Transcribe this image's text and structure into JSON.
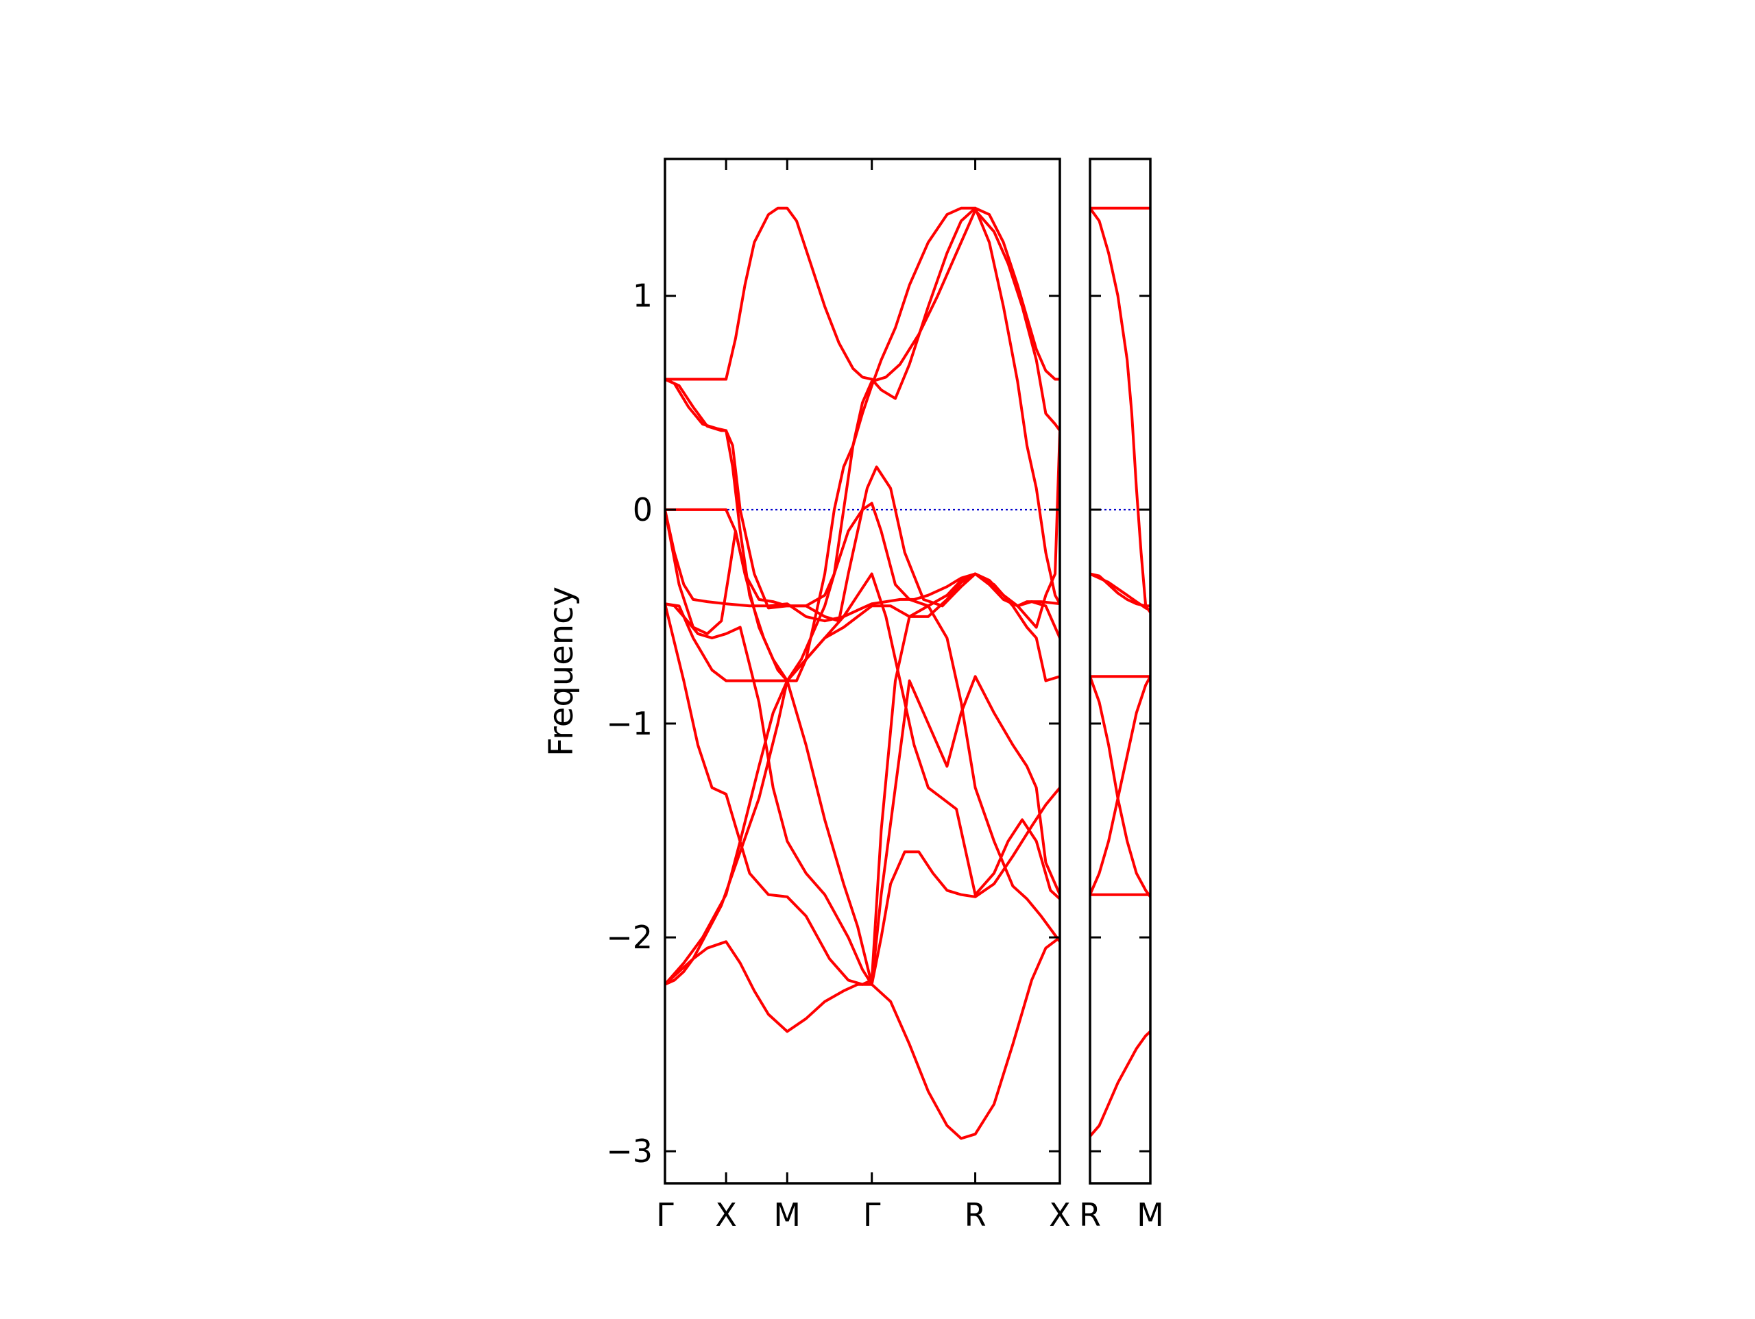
{
  "chart_data": {
    "type": "line",
    "title": "",
    "xlabel": "",
    "ylabel": "Frequency",
    "ylim": [
      -3.15,
      1.64
    ],
    "yticks": [
      1,
      0,
      -1,
      -2,
      -3
    ],
    "ytick_labels": [
      "1",
      "0",
      "−1",
      "−2",
      "−3"
    ],
    "grid": false,
    "legend": "none",
    "line_color": "#ff0000",
    "zero_line_color": "#0000cc",
    "panels": [
      {
        "name": "panel-main",
        "x_range": [
          0,
          4.2
        ],
        "xticks": [
          0,
          0.65,
          1.3,
          2.2,
          3.3,
          4.2
        ],
        "xtick_labels": [
          "Γ",
          "X",
          "M",
          "Γ",
          "R",
          "X"
        ],
        "series": [
          {
            "name": "",
            "x": [
              0,
              0.1,
              0.2,
              0.3,
              0.45,
              0.65,
              0.8,
              0.95,
              1.1,
              1.3,
              1.5,
              1.7,
              1.9,
              2.05,
              2.2,
              2.4,
              2.6,
              2.8,
              3.0,
              3.15,
              3.3,
              3.5,
              3.7,
              3.9,
              4.05,
              4.2
            ],
            "y": [
              -2.22,
              -2.2,
              -2.16,
              -2.1,
              -2.05,
              -2.02,
              -2.12,
              -2.25,
              -2.36,
              -2.44,
              -2.38,
              -2.3,
              -2.25,
              -2.22,
              -2.22,
              -2.3,
              -2.5,
              -2.72,
              -2.88,
              -2.94,
              -2.92,
              -2.78,
              -2.5,
              -2.2,
              -2.05,
              -2.0
            ]
          },
          {
            "name": "",
            "x": [
              0,
              0.2,
              0.4,
              0.55,
              0.65,
              0.8,
              1.0,
              1.15,
              1.3,
              1.5,
              1.7,
              1.9,
              2.05,
              2.2,
              2.35,
              2.5,
              2.65,
              2.8,
              2.95,
              3.1,
              3.3,
              3.5,
              3.65,
              3.8,
              3.95,
              4.1,
              4.2
            ],
            "y": [
              -2.22,
              -2.12,
              -2.0,
              -1.88,
              -1.8,
              -1.55,
              -1.2,
              -0.95,
              -0.8,
              -0.7,
              -0.6,
              -0.5,
              -0.4,
              -0.3,
              -0.5,
              -0.8,
              -1.1,
              -1.3,
              -1.35,
              -1.4,
              -1.8,
              -1.7,
              -1.55,
              -1.45,
              -1.55,
              -1.78,
              -1.82
            ]
          },
          {
            "name": "",
            "x": [
              0,
              0.3,
              0.6,
              0.8,
              1.0,
              1.2,
              1.3,
              1.5,
              1.7,
              1.9,
              2.05,
              2.2,
              2.3,
              2.4,
              2.55,
              2.7,
              2.85,
              3.0,
              3.15,
              3.3,
              3.5,
              3.7,
              3.9,
              4.05,
              4.2
            ],
            "y": [
              -2.22,
              -2.1,
              -1.85,
              -1.6,
              -1.35,
              -1.0,
              -0.8,
              -1.1,
              -1.45,
              -1.75,
              -1.95,
              -2.22,
              -2.0,
              -1.75,
              -1.6,
              -1.6,
              -1.7,
              -1.78,
              -1.8,
              -1.81,
              -1.75,
              -1.62,
              -1.48,
              -1.38,
              -1.3
            ]
          },
          {
            "name": "",
            "x": [
              0,
              0.2,
              0.35,
              0.5,
              0.65,
              0.75,
              0.9,
              1.1,
              1.3,
              1.5,
              1.75,
              1.95,
              2.1,
              2.2,
              2.3,
              2.45,
              2.6,
              2.8,
              3.0,
              3.15,
              3.3,
              3.5,
              3.7,
              3.85,
              4.0,
              4.2
            ],
            "y": [
              -0.44,
              -0.8,
              -1.1,
              -1.3,
              -1.33,
              -1.48,
              -1.7,
              -1.8,
              -1.81,
              -1.9,
              -2.1,
              -2.2,
              -2.22,
              -2.2,
              -1.5,
              -0.8,
              -0.5,
              -0.45,
              -0.6,
              -0.9,
              -1.3,
              -1.55,
              -1.76,
              -1.82,
              -1.9,
              -2.02
            ]
          },
          {
            "name": "",
            "x": [
              0,
              0.1,
              0.2,
              0.35,
              0.5,
              0.65,
              0.8,
              1.0,
              1.15,
              1.3,
              1.5,
              1.7,
              1.95,
              2.1,
              2.2,
              2.3,
              2.45,
              2.6,
              2.8,
              3.0,
              3.15,
              3.3,
              3.5,
              3.7,
              3.85,
              3.95,
              4.05,
              4.2
            ],
            "y": [
              -0.44,
              -0.45,
              -0.5,
              -0.58,
              -0.6,
              -0.58,
              -0.55,
              -0.9,
              -1.3,
              -1.55,
              -1.7,
              -1.8,
              -2.0,
              -2.15,
              -2.22,
              -1.8,
              -1.3,
              -0.8,
              -1.0,
              -1.2,
              -0.95,
              -0.78,
              -0.95,
              -1.1,
              -1.2,
              -1.3,
              -1.65,
              -1.8
            ]
          },
          {
            "name": "",
            "x": [
              0,
              0.15,
              0.3,
              0.5,
              0.65,
              0.8,
              1.0,
              1.2,
              1.3,
              1.5,
              1.7,
              1.9,
              2.05,
              2.2,
              2.4,
              2.6,
              2.8,
              3.0,
              3.15,
              3.3,
              3.5,
              3.7,
              3.85,
              3.95,
              4.05,
              4.2
            ],
            "y": [
              -0.44,
              -0.45,
              -0.6,
              -0.75,
              -0.8,
              -0.8,
              -0.8,
              -0.8,
              -0.8,
              -0.7,
              -0.6,
              -0.55,
              -0.5,
              -0.45,
              -0.45,
              -0.5,
              -0.5,
              -0.42,
              -0.34,
              -0.3,
              -0.35,
              -0.45,
              -0.55,
              -0.6,
              -0.8,
              -0.78
            ]
          },
          {
            "name": "",
            "x": [
              0,
              0.1,
              0.2,
              0.3,
              0.45,
              0.65,
              0.9,
              1.1,
              1.3,
              1.5,
              1.7,
              1.9,
              2.05,
              2.2,
              2.35,
              2.5,
              2.65,
              2.8,
              3.0,
              3.15,
              3.3,
              3.45,
              3.6,
              3.75,
              3.9,
              4.05,
              4.2
            ],
            "y": [
              0.0,
              -0.2,
              -0.35,
              -0.42,
              -0.43,
              -0.44,
              -0.45,
              -0.45,
              -0.44,
              -0.5,
              -0.52,
              -0.5,
              -0.47,
              -0.44,
              -0.43,
              -0.42,
              -0.42,
              -0.4,
              -0.36,
              -0.32,
              -0.3,
              -0.35,
              -0.42,
              -0.45,
              -0.43,
              -0.45,
              -0.6
            ]
          },
          {
            "name": "",
            "x": [
              0,
              0.15,
              0.3,
              0.45,
              0.6,
              0.68,
              0.75,
              0.85,
              1.0,
              1.15,
              1.3,
              1.5,
              1.7,
              1.85,
              1.95,
              2.05,
              2.15,
              2.25,
              2.4,
              2.55,
              2.75,
              2.95,
              3.15,
              3.3,
              3.45,
              3.6,
              3.75,
              3.85,
              4.0,
              4.2
            ],
            "y": [
              0.0,
              -0.35,
              -0.55,
              -0.58,
              -0.52,
              -0.3,
              -0.1,
              -0.3,
              -0.42,
              -0.43,
              -0.45,
              -0.45,
              -0.5,
              -0.52,
              -0.3,
              -0.1,
              0.1,
              0.2,
              0.1,
              -0.2,
              -0.42,
              -0.45,
              -0.36,
              -0.3,
              -0.33,
              -0.4,
              -0.45,
              -0.43,
              -0.43,
              -0.44
            ]
          },
          {
            "name": "",
            "x": [
              0,
              0.1,
              0.25,
              0.4,
              0.55,
              0.65,
              0.72,
              0.8,
              0.95,
              1.1,
              1.3,
              1.5,
              1.7,
              1.8,
              1.95,
              2.1,
              2.2,
              2.3,
              2.45,
              2.6,
              2.8,
              3.0,
              3.15,
              3.3,
              3.45,
              3.6,
              3.75,
              3.85,
              3.95,
              4.05,
              4.15,
              4.2
            ],
            "y": [
              0.61,
              0.59,
              0.48,
              0.4,
              0.38,
              0.37,
              0.3,
              0.0,
              -0.3,
              -0.46,
              -0.45,
              -0.45,
              -0.4,
              -0.3,
              -0.1,
              0.0,
              0.03,
              -0.1,
              -0.35,
              -0.42,
              -0.45,
              -0.4,
              -0.33,
              -0.3,
              -0.34,
              -0.4,
              -0.45,
              -0.5,
              -0.55,
              -0.4,
              -0.3,
              0.37
            ]
          },
          {
            "name": "",
            "x": [
              0,
              0.15,
              0.3,
              0.45,
              0.6,
              0.65,
              0.72,
              0.8,
              0.9,
              1.05,
              1.2,
              1.3,
              1.45,
              1.6,
              1.7,
              1.8,
              1.9,
              2.0,
              2.1,
              2.2,
              2.35,
              2.5,
              2.7,
              2.9,
              3.1,
              3.3,
              3.5,
              3.65,
              3.8,
              3.95,
              4.05,
              4.15,
              4.2
            ],
            "y": [
              0.61,
              0.58,
              0.48,
              0.39,
              0.37,
              0.37,
              0.2,
              -0.1,
              -0.4,
              -0.6,
              -0.75,
              -0.8,
              -0.7,
              -0.55,
              -0.45,
              -0.3,
              0.0,
              0.3,
              0.5,
              0.6,
              0.62,
              0.68,
              0.82,
              1.0,
              1.2,
              1.4,
              1.3,
              1.15,
              0.95,
              0.7,
              0.45,
              0.4,
              0.37
            ]
          },
          {
            "name": "",
            "x": [
              0,
              0.3,
              0.65,
              0.75,
              0.85,
              0.95,
              1.1,
              1.2,
              1.3,
              1.4,
              1.55,
              1.7,
              1.85,
              2.0,
              2.1,
              2.2,
              2.3,
              2.45,
              2.6,
              2.8,
              3.0,
              3.15,
              3.3,
              3.45,
              3.6,
              3.75,
              3.85,
              3.95,
              4.05,
              4.15,
              4.2
            ],
            "y": [
              0.61,
              0.61,
              0.61,
              0.8,
              1.05,
              1.25,
              1.38,
              1.41,
              1.41,
              1.35,
              1.15,
              0.95,
              0.78,
              0.66,
              0.62,
              0.61,
              0.56,
              0.52,
              0.68,
              0.95,
              1.2,
              1.35,
              1.41,
              1.38,
              1.25,
              1.05,
              0.9,
              0.75,
              0.65,
              0.61,
              0.61
            ]
          },
          {
            "name": "",
            "x": [
              0,
              0.3,
              0.65,
              0.75,
              0.85,
              1.0,
              1.15,
              1.3,
              1.4,
              1.5,
              1.6,
              1.7,
              1.8,
              1.9,
              2.0,
              2.1,
              2.2,
              2.3,
              2.45,
              2.6,
              2.8,
              3.0,
              3.15,
              3.3,
              3.45,
              3.6,
              3.75,
              3.85,
              3.95,
              4.05,
              4.15,
              4.2
            ],
            "y": [
              0.0,
              0.0,
              0.0,
              -0.1,
              -0.3,
              -0.55,
              -0.7,
              -0.8,
              -0.8,
              -0.7,
              -0.5,
              -0.3,
              0.0,
              0.2,
              0.3,
              0.45,
              0.58,
              0.7,
              0.85,
              1.05,
              1.25,
              1.38,
              1.41,
              1.41,
              1.25,
              0.95,
              0.6,
              0.3,
              0.1,
              -0.2,
              -0.4,
              -0.44
            ]
          }
        ]
      },
      {
        "name": "panel-side",
        "x_range": [
          0,
          0.65
        ],
        "xticks": [
          0,
          0.65
        ],
        "xtick_labels": [
          "R",
          "M"
        ],
        "series": [
          {
            "name": "",
            "x": [
              0,
              0.1,
              0.2,
              0.3,
              0.4,
              0.5,
              0.6,
              0.65
            ],
            "y": [
              -2.93,
              -2.88,
              -2.78,
              -2.68,
              -2.6,
              -2.52,
              -2.46,
              -2.44
            ]
          },
          {
            "name": "",
            "x": [
              0,
              0.65
            ],
            "y": [
              -1.8,
              -1.8
            ]
          },
          {
            "name": "",
            "x": [
              0,
              0.1,
              0.2,
              0.3,
              0.4,
              0.5,
              0.6,
              0.65
            ],
            "y": [
              -0.78,
              -0.9,
              -1.1,
              -1.35,
              -1.55,
              -1.7,
              -1.78,
              -1.81
            ]
          },
          {
            "name": "",
            "x": [
              0,
              0.1,
              0.2,
              0.3,
              0.4,
              0.5,
              0.6,
              0.65
            ],
            "y": [
              -1.8,
              -1.7,
              -1.55,
              -1.35,
              -1.15,
              -0.95,
              -0.82,
              -0.78
            ]
          },
          {
            "name": "",
            "x": [
              0,
              0.65
            ],
            "y": [
              -0.78,
              -0.78
            ]
          },
          {
            "name": "",
            "x": [
              0,
              0.1,
              0.2,
              0.3,
              0.4,
              0.5,
              0.6,
              0.65
            ],
            "y": [
              -0.3,
              -0.32,
              -0.34,
              -0.37,
              -0.4,
              -0.43,
              -0.46,
              -0.47
            ]
          },
          {
            "name": "",
            "x": [
              0,
              0.1,
              0.2,
              0.3,
              0.4,
              0.5,
              0.6,
              0.65
            ],
            "y": [
              -0.3,
              -0.31,
              -0.35,
              -0.39,
              -0.42,
              -0.44,
              -0.45,
              -0.45
            ]
          },
          {
            "name": "",
            "x": [
              0,
              0.1,
              0.2,
              0.3,
              0.4,
              0.45,
              0.5,
              0.55,
              0.6,
              0.65
            ],
            "y": [
              1.41,
              1.35,
              1.2,
              1.0,
              0.7,
              0.45,
              0.1,
              -0.2,
              -0.45,
              -0.48
            ]
          },
          {
            "name": "",
            "x": [
              0,
              0.65
            ],
            "y": [
              1.41,
              1.41
            ]
          }
        ]
      }
    ]
  }
}
